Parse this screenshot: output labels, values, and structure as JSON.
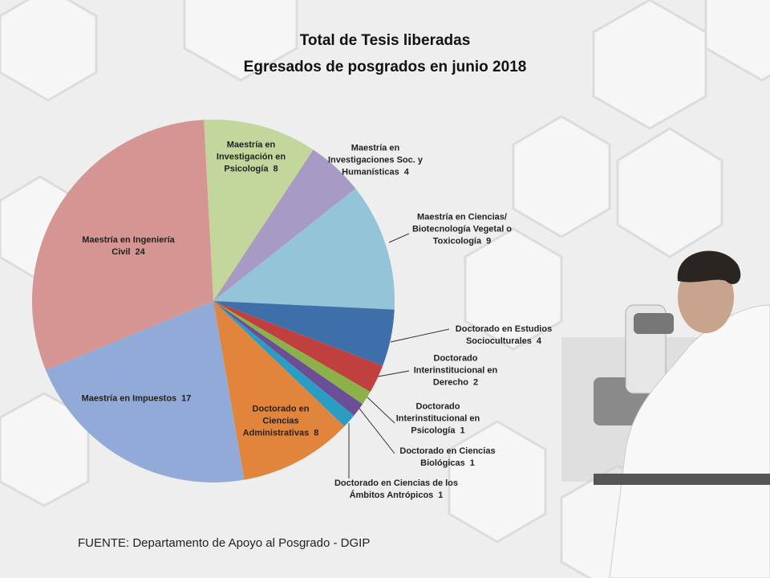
{
  "chart_data": {
    "type": "pie",
    "title": "Total de Tesis liberadas",
    "subtitle": "Egresados de posgrados en junio 2018",
    "categories": [
      "Maestría en Investigación en Psicología",
      "Maestría en Investigaciones Soc. y Humanísticas",
      "Maestría en Ciencias/ Biotecnología Vegetal o Toxicología",
      "Doctorado en Estudios Socioculturales",
      "Doctorado Interinstitucional en Derecho",
      "Doctorado Interinstitucional en Psicología",
      "Doctorado en Ciencias Biológicas",
      "Doctorado en Ciencias de los Ámbitos Antrópicos",
      "Doctorado en Ciencias Administrativas",
      "Maestría en Impuestos",
      "Maestría en Ingeniería Civil"
    ],
    "values": [
      8,
      4,
      9,
      4,
      2,
      1,
      1,
      1,
      8,
      17,
      24
    ],
    "colors": [
      "#c3d69b",
      "#a79bc6",
      "#93c4d7",
      "#3f6fa8",
      "#c0403d",
      "#8cb14b",
      "#6a4f96",
      "#2c9dc2",
      "#e0853b",
      "#92aad8",
      "#d49593"
    ],
    "source": "FUENTE: Departamento de Apoyo al Posgrado - DGIP"
  }
}
